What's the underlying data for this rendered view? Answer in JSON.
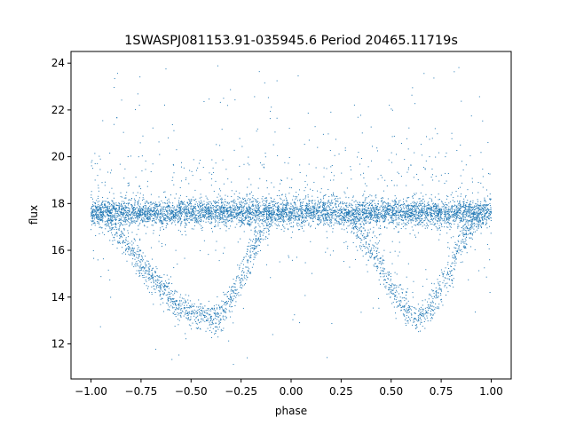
{
  "chart_data": {
    "type": "scatter",
    "title": "1SWASPJ081153.91-035945.6 Period 20465.11719s",
    "xlabel": "phase",
    "ylabel": "flux",
    "xlim": [
      -1.1,
      1.1
    ],
    "ylim": [
      10.5,
      24.5
    ],
    "xticks": [
      -1.0,
      -0.75,
      -0.5,
      -0.25,
      0.0,
      0.25,
      0.5,
      0.75,
      1.0
    ],
    "xtick_labels": [
      "−1.00",
      "−0.75",
      "−0.50",
      "−0.25",
      "0.00",
      "0.25",
      "0.50",
      "0.75",
      "1.00"
    ],
    "yticks": [
      12,
      14,
      16,
      18,
      20,
      22,
      24
    ],
    "ytick_labels": [
      "12",
      "14",
      "16",
      "18",
      "20",
      "22",
      "24"
    ],
    "grid": false,
    "point_color": "#1f77b4",
    "series": [
      {
        "description_points": "phase-folded light curve, representative points",
        "x": [
          -1.0,
          -0.95,
          -0.9,
          -0.85,
          -0.8,
          -0.75,
          -0.7,
          -0.65,
          -0.6,
          -0.55,
          -0.5,
          -0.45,
          -0.4,
          -0.38,
          -0.35,
          -0.3,
          -0.25,
          -0.2,
          -0.15,
          -0.1,
          -0.05,
          0.0,
          0.05,
          0.1,
          0.15,
          0.2,
          0.25,
          0.3,
          0.35,
          0.4,
          0.45,
          0.5,
          0.55,
          0.6,
          0.62,
          0.65,
          0.7,
          0.75,
          0.8,
          0.85,
          0.9,
          0.95,
          1.0
        ],
        "y": [
          17.6,
          17.5,
          17.2,
          16.6,
          16.0,
          15.4,
          14.9,
          14.4,
          13.9,
          13.5,
          13.3,
          13.2,
          13.1,
          13.1,
          13.3,
          13.9,
          14.8,
          15.8,
          16.8,
          17.4,
          17.6,
          17.6,
          17.6,
          17.5,
          17.6,
          17.6,
          17.5,
          17.3,
          16.7,
          16.0,
          15.4,
          14.5,
          13.8,
          13.3,
          13.1,
          13.2,
          13.6,
          14.3,
          15.3,
          16.3,
          17.0,
          17.4,
          17.6
        ]
      }
    ],
    "baseline_flux": 17.6,
    "minimum_flux": 13.1,
    "minimum_phases": [
      -0.38,
      0.62
    ]
  }
}
